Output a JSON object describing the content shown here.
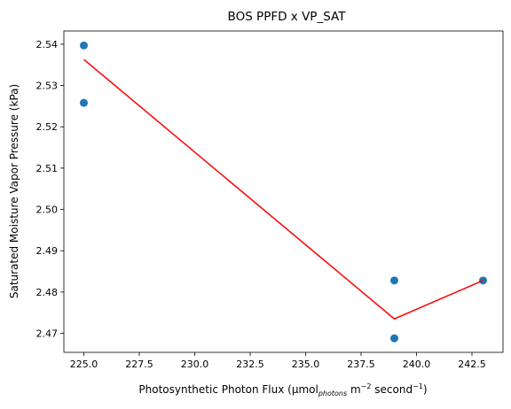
{
  "chart_data": {
    "type": "scatter",
    "title": "BOS PPFD x VP_SAT",
    "xlabel": {
      "prefix": "Photosynthetic Photon Flux (µmol",
      "sub": "photons",
      "middle": " m",
      "sup1": "−2",
      "after": " second",
      "sup2": "−1",
      "suffix": ")"
    },
    "ylabel": "Saturated Moisture Vapor Pressure (kPa)",
    "xlim": [
      224.1,
      243.9
    ],
    "ylim": [
      2.4654,
      2.5432
    ],
    "xticks": [
      225.0,
      227.5,
      230.0,
      232.5,
      235.0,
      237.5,
      240.0,
      242.5
    ],
    "xtick_labels": [
      "225.0",
      "227.5",
      "230.0",
      "232.5",
      "235.0",
      "237.5",
      "240.0",
      "242.5"
    ],
    "yticks": [
      2.47,
      2.48,
      2.49,
      2.5,
      2.51,
      2.52,
      2.53,
      2.54
    ],
    "ytick_labels": [
      "2.47",
      "2.48",
      "2.49",
      "2.50",
      "2.51",
      "2.52",
      "2.53",
      "2.54"
    ],
    "grid": false,
    "series": [
      {
        "type": "scatter",
        "color": "#1f77b4",
        "points": [
          {
            "x": 225,
            "y": 2.5397
          },
          {
            "x": 225,
            "y": 2.5258
          },
          {
            "x": 239,
            "y": 2.4828
          },
          {
            "x": 239,
            "y": 2.4688
          },
          {
            "x": 243,
            "y": 2.4828
          }
        ]
      },
      {
        "type": "line",
        "color": "#ff0000",
        "points": [
          {
            "x": 225,
            "y": 2.5363
          },
          {
            "x": 239,
            "y": 2.4735
          },
          {
            "x": 243,
            "y": 2.4828
          }
        ]
      }
    ]
  }
}
